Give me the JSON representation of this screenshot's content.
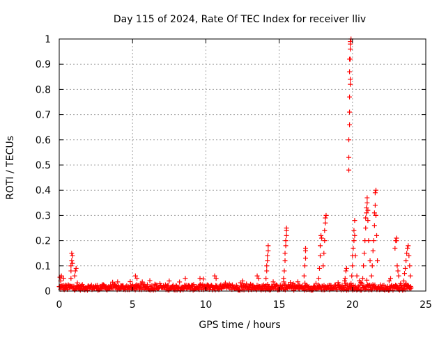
{
  "chart_data": {
    "type": "scatter",
    "title": "Day 115 of 2024, Rate Of TEC Index for receiver lliv",
    "xlabel": "GPS time / hours",
    "ylabel": "ROTI / TECUs",
    "xlim": [
      0,
      25
    ],
    "ylim": [
      0,
      1
    ],
    "xticks": [
      0,
      5,
      10,
      15,
      20,
      25
    ],
    "xtick_labels": [
      "0",
      "5",
      "10",
      "15",
      "20",
      "25"
    ],
    "yticks": [
      0,
      0.1,
      0.2,
      0.3,
      0.4,
      0.5,
      0.6,
      0.7,
      0.8,
      0.9,
      1
    ],
    "ytick_labels": [
      "0",
      "0.1",
      "0.2",
      "0.3",
      "0.4",
      "0.5",
      "0.6",
      "0.7",
      "0.8",
      "0.9",
      "1"
    ],
    "grid": true,
    "marker": "+",
    "series": [
      {
        "name": "ROTI",
        "color": "#ff0000",
        "baseline": {
          "x_start": 0,
          "x_end": 24,
          "level": 0.015
        },
        "points": [
          [
            0.05,
            0.055
          ],
          [
            0.1,
            0.04
          ],
          [
            0.15,
            0.06
          ],
          [
            0.3,
            0.05
          ],
          [
            0.8,
            0.05
          ],
          [
            0.8,
            0.08
          ],
          [
            0.8,
            0.1
          ],
          [
            0.85,
            0.12
          ],
          [
            0.85,
            0.15
          ],
          [
            0.9,
            0.14
          ],
          [
            0.9,
            0.11
          ],
          [
            1.05,
            0.06
          ],
          [
            1.1,
            0.08
          ],
          [
            1.15,
            0.09
          ],
          [
            5.2,
            0.06
          ],
          [
            5.3,
            0.05
          ],
          [
            7.5,
            0.04
          ],
          [
            8.6,
            0.05
          ],
          [
            9.6,
            0.05
          ],
          [
            10.6,
            0.06
          ],
          [
            10.7,
            0.05
          ],
          [
            12.5,
            0.04
          ],
          [
            13.5,
            0.06
          ],
          [
            13.6,
            0.05
          ],
          [
            14.1,
            0.05
          ],
          [
            14.15,
            0.08
          ],
          [
            14.15,
            0.1
          ],
          [
            14.2,
            0.12
          ],
          [
            14.2,
            0.14
          ],
          [
            14.25,
            0.16
          ],
          [
            14.25,
            0.18
          ],
          [
            15.3,
            0.05
          ],
          [
            15.35,
            0.08
          ],
          [
            15.4,
            0.12
          ],
          [
            15.4,
            0.15
          ],
          [
            15.45,
            0.18
          ],
          [
            15.45,
            0.2
          ],
          [
            15.5,
            0.22
          ],
          [
            15.5,
            0.24
          ],
          [
            15.5,
            0.25
          ],
          [
            16.7,
            0.06
          ],
          [
            16.75,
            0.1
          ],
          [
            16.8,
            0.13
          ],
          [
            16.8,
            0.16
          ],
          [
            16.8,
            0.17
          ],
          [
            17.7,
            0.05
          ],
          [
            17.75,
            0.09
          ],
          [
            17.8,
            0.14
          ],
          [
            17.8,
            0.18
          ],
          [
            17.85,
            0.22
          ],
          [
            17.9,
            0.21
          ],
          [
            18.0,
            0.1
          ],
          [
            18.05,
            0.15
          ],
          [
            18.1,
            0.2
          ],
          [
            18.1,
            0.24
          ],
          [
            18.15,
            0.27
          ],
          [
            18.15,
            0.29
          ],
          [
            18.2,
            0.3
          ],
          [
            19.5,
            0.05
          ],
          [
            19.55,
            0.08
          ],
          [
            19.6,
            0.09
          ],
          [
            19.75,
            0.48
          ],
          [
            19.75,
            0.53
          ],
          [
            19.75,
            0.6
          ],
          [
            19.8,
            0.66
          ],
          [
            19.8,
            0.71
          ],
          [
            19.8,
            0.77
          ],
          [
            19.85,
            0.82
          ],
          [
            19.85,
            0.84
          ],
          [
            19.8,
            0.87
          ],
          [
            19.8,
            0.92
          ],
          [
            19.85,
            0.92
          ],
          [
            19.85,
            0.96
          ],
          [
            19.85,
            0.98
          ],
          [
            19.85,
            0.99
          ],
          [
            19.9,
            1.0
          ],
          [
            19.9,
            0.03
          ],
          [
            19.95,
            0.06
          ],
          [
            20.0,
            0.1
          ],
          [
            20.0,
            0.14
          ],
          [
            20.05,
            0.17
          ],
          [
            20.1,
            0.2
          ],
          [
            20.1,
            0.24
          ],
          [
            20.15,
            0.28
          ],
          [
            20.15,
            0.22
          ],
          [
            20.2,
            0.14
          ],
          [
            20.3,
            0.06
          ],
          [
            20.7,
            0.05
          ],
          [
            20.75,
            0.1
          ],
          [
            20.8,
            0.15
          ],
          [
            20.85,
            0.2
          ],
          [
            20.9,
            0.25
          ],
          [
            20.9,
            0.29
          ],
          [
            20.95,
            0.31
          ],
          [
            20.95,
            0.33
          ],
          [
            21.0,
            0.35
          ],
          [
            21.0,
            0.37
          ],
          [
            21.05,
            0.32
          ],
          [
            21.05,
            0.28
          ],
          [
            21.1,
            0.2
          ],
          [
            21.2,
            0.12
          ],
          [
            21.3,
            0.06
          ],
          [
            21.35,
            0.1
          ],
          [
            21.4,
            0.16
          ],
          [
            21.45,
            0.2
          ],
          [
            21.5,
            0.26
          ],
          [
            21.5,
            0.31
          ],
          [
            21.55,
            0.34
          ],
          [
            21.55,
            0.39
          ],
          [
            21.6,
            0.4
          ],
          [
            21.6,
            0.3
          ],
          [
            21.65,
            0.22
          ],
          [
            21.7,
            0.12
          ],
          [
            22.5,
            0.04
          ],
          [
            22.6,
            0.05
          ],
          [
            22.9,
            0.17
          ],
          [
            22.95,
            0.2
          ],
          [
            23.0,
            0.21
          ],
          [
            23.0,
            0.2
          ],
          [
            23.05,
            0.1
          ],
          [
            23.1,
            0.08
          ],
          [
            23.15,
            0.06
          ],
          [
            23.5,
            0.04
          ],
          [
            23.55,
            0.07
          ],
          [
            23.6,
            0.09
          ],
          [
            23.65,
            0.12
          ],
          [
            23.7,
            0.15
          ],
          [
            23.75,
            0.17
          ],
          [
            23.8,
            0.18
          ],
          [
            23.85,
            0.14
          ],
          [
            23.9,
            0.1
          ],
          [
            23.95,
            0.06
          ]
        ]
      }
    ]
  }
}
